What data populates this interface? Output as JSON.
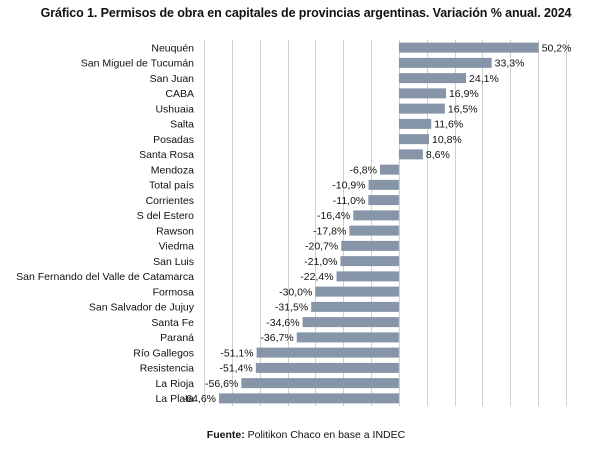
{
  "chart_data": {
    "type": "bar",
    "orientation": "horizontal",
    "title": "Gráfico 1. Permisos de obra en capitales de provincias argentinas. Variación % anual. 2024",
    "categories": [
      "Neuquén",
      "San Miguel de Tucumán",
      "San Juan",
      "CABA",
      "Ushuaia",
      "Salta",
      "Posadas",
      "Santa Rosa",
      "Mendoza",
      "Total país",
      "Corrientes",
      "S del Estero",
      "Rawson",
      "Viedma",
      "San Luis",
      "San Fernando del Valle de Catamarca",
      "Formosa",
      "San Salvador de Jujuy",
      "Santa Fe",
      "Paraná",
      "Río Gallegos",
      "Resistencia",
      "La Rioja",
      "La Plata"
    ],
    "values": [
      50.2,
      33.3,
      24.1,
      16.9,
      16.5,
      11.6,
      10.8,
      8.6,
      -6.8,
      -10.9,
      -11.0,
      -16.4,
      -17.8,
      -20.7,
      -21.0,
      -22.4,
      -30.0,
      -31.5,
      -34.6,
      -36.7,
      -51.1,
      -51.4,
      -56.6,
      -64.6
    ],
    "data_labels": [
      "50,2%",
      "33,3%",
      "24,1%",
      "16,9%",
      "16,5%",
      "11,6%",
      "10,8%",
      "8,6%",
      "-6,8%",
      "-10,9%",
      "-11,0%",
      "-16,4%",
      "-17,8%",
      "-20,7%",
      "-21,0%",
      "-22,4%",
      "-30,0%",
      "-31,5%",
      "-34,6%",
      "-36,7%",
      "-51,1%",
      "-51,4%",
      "-56,6%",
      "-64,6%"
    ],
    "xlim": [
      -70,
      60
    ],
    "grid": true,
    "bar_color": "#8795a8",
    "grid_color": "#d0d0d0"
  },
  "source": {
    "label": "Fuente:",
    "text": " Politikon Chaco en base a INDEC"
  }
}
